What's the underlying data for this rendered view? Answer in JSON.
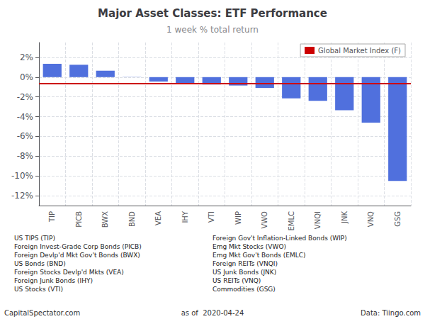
{
  "chart_data": {
    "type": "bar",
    "title": "Major Asset Classes: ETF Performance",
    "subtitle": "1 week % total return",
    "categories": [
      "TIP",
      "PICB",
      "BWX",
      "BND",
      "VEA",
      "IHY",
      "VTI",
      "WIP",
      "VWO",
      "EMLC",
      "VNQI",
      "JNK",
      "VNQ",
      "GSG"
    ],
    "values": [
      1.35,
      1.25,
      0.65,
      0.02,
      -0.45,
      -0.65,
      -0.75,
      -0.85,
      -1.1,
      -2.15,
      -2.4,
      -3.35,
      -4.6,
      -10.5
    ],
    "reference_line": {
      "name": "Global Market Index (F)",
      "value": -0.65,
      "color": "#cc0000"
    },
    "ylim": [
      -13,
      3.5
    ],
    "yticks": [
      {
        "value": -12,
        "label": "-12%"
      },
      {
        "value": -10,
        "label": "-10%"
      },
      {
        "value": -8,
        "label": "-8%"
      },
      {
        "value": -6,
        "label": "-6%"
      },
      {
        "value": -4,
        "label": "-4%"
      },
      {
        "value": -2,
        "label": "-2%"
      },
      {
        "value": 0,
        "label": "0%"
      },
      {
        "value": 2,
        "label": "2%"
      }
    ],
    "grid": true,
    "legend": "upper right",
    "annotations": [
      [
        "US TIPS (TIP)",
        "Foreign Gov't Inflation-Linked Bonds (WIP)"
      ],
      [
        "Foreign Invest-Grade Corp Bonds (PICB)",
        "Emg Mkt Stocks (VWO)"
      ],
      [
        "Foreign Devlp'd Mkt Gov't Bonds (BWX)",
        "Emg Mkt Gov't Bonds (EMLC)"
      ],
      [
        "US Bonds (BND)",
        "Foreign REITs (VNQI)"
      ],
      [
        "Foreign Stocks Devlp'd Mkts (VEA)",
        "US Junk Bonds (JNK)"
      ],
      [
        "Foreign Junk Bonds (IHY)",
        "US REITs (VNQ)"
      ],
      [
        "US Stocks (VTI)",
        "Commodities (GSG)"
      ]
    ],
    "footer": [
      "CapitalSpectator.com",
      "as of  2020-04-24",
      "Data: Tiingo.com"
    ]
  }
}
